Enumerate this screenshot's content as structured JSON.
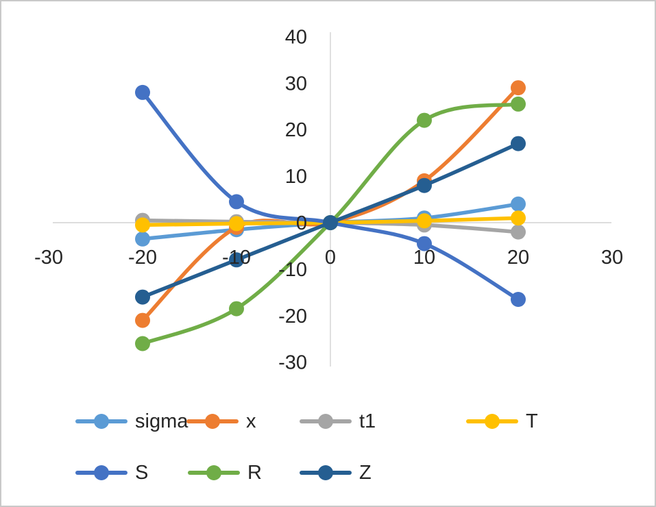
{
  "chart_data": {
    "type": "line",
    "title": "",
    "xlabel": "",
    "ylabel": "",
    "x": [
      -20,
      -10,
      0,
      10,
      20
    ],
    "series": [
      {
        "name": "sigma",
        "color": "#5B9BD5",
        "values": [
          -3.5,
          -1.5,
          0,
          1,
          4
        ]
      },
      {
        "name": "x",
        "color": "#ED7D31",
        "values": [
          -21,
          -1,
          0,
          9,
          29
        ]
      },
      {
        "name": "t1",
        "color": "#A5A5A5",
        "values": [
          0.5,
          0.2,
          0,
          -0.5,
          -2
        ]
      },
      {
        "name": "T",
        "color": "#FFC000",
        "values": [
          -0.5,
          -0.2,
          0,
          0.4,
          1
        ]
      },
      {
        "name": "S",
        "color": "#4472C4",
        "values": [
          28,
          4.5,
          0,
          -4.5,
          -16.5
        ]
      },
      {
        "name": "R",
        "color": "#70AD47",
        "values": [
          -26,
          -18.5,
          0,
          22,
          25.5
        ]
      },
      {
        "name": "Z",
        "color": "#255E91",
        "values": [
          -16,
          -8,
          0,
          8,
          17
        ]
      }
    ],
    "xlim": [
      -30,
      30
    ],
    "ylim": [
      -30,
      40
    ],
    "x_ticks": [
      -30,
      -20,
      -10,
      0,
      10,
      20,
      30
    ],
    "y_ticks": [
      40,
      30,
      20,
      10,
      0,
      -10,
      -20,
      -30
    ],
    "grid": "axis-lines-only",
    "smooth": true,
    "legend_position": "bottom",
    "legend_rows": [
      [
        "sigma",
        "x",
        "t1",
        "T"
      ],
      [
        "S",
        "R",
        "Z"
      ]
    ],
    "axis_color": "#D2D2D2",
    "text_color": "#262626"
  }
}
